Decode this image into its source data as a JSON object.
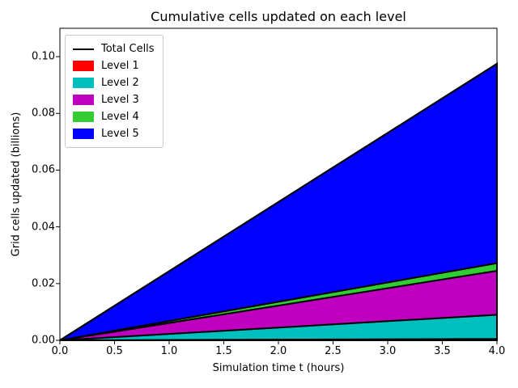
{
  "chart_data": {
    "type": "area",
    "stacked": true,
    "title": "Cumulative cells updated on each level",
    "xlabel": "Simulation time t (hours)",
    "ylabel": "Grid cells updated (billions)",
    "xlim": [
      0,
      4
    ],
    "ylim": [
      0,
      0.11
    ],
    "grid": false,
    "background": "#ffffff",
    "edge_color": "#000000",
    "x": [
      0,
      4
    ],
    "series": [
      {
        "name": "Level 1",
        "color": "#ff0000",
        "values": [
          0,
          0.0005
        ]
      },
      {
        "name": "Level 2",
        "color": "#00bfbf",
        "values": [
          0,
          0.0085
        ]
      },
      {
        "name": "Level 3",
        "color": "#bf00bf",
        "values": [
          0,
          0.0155
        ]
      },
      {
        "name": "Level 4",
        "color": "#32cd32",
        "values": [
          0,
          0.0027
        ]
      },
      {
        "name": "Level 5",
        "color": "#0000ff",
        "values": [
          0,
          0.0703
        ]
      }
    ],
    "total_line": {
      "name": "Total Cells",
      "color": "#000000",
      "values": [
        0,
        0.0975
      ]
    },
    "xticks": [
      0.0,
      0.5,
      1.0,
      1.5,
      2.0,
      2.5,
      3.0,
      3.5,
      4.0
    ],
    "xtick_labels": [
      "0.0",
      "0.5",
      "1.0",
      "1.5",
      "2.0",
      "2.5",
      "3.0",
      "3.5",
      "4.0"
    ],
    "yticks": [
      0.0,
      0.02,
      0.04,
      0.06,
      0.08,
      0.1
    ],
    "ytick_labels": [
      "0.00",
      "0.02",
      "0.04",
      "0.06",
      "0.08",
      "0.10"
    ],
    "legend": {
      "position": "upper left",
      "entries": [
        {
          "label": "Total Cells",
          "swatch": "line",
          "color": "#000000"
        },
        {
          "label": "Level 1",
          "swatch": "patch",
          "color": "#ff0000"
        },
        {
          "label": "Level 2",
          "swatch": "patch",
          "color": "#00bfbf"
        },
        {
          "label": "Level 3",
          "swatch": "patch",
          "color": "#bf00bf"
        },
        {
          "label": "Level 4",
          "swatch": "patch",
          "color": "#32cd32"
        },
        {
          "label": "Level 5",
          "swatch": "patch",
          "color": "#0000ff"
        }
      ]
    }
  }
}
